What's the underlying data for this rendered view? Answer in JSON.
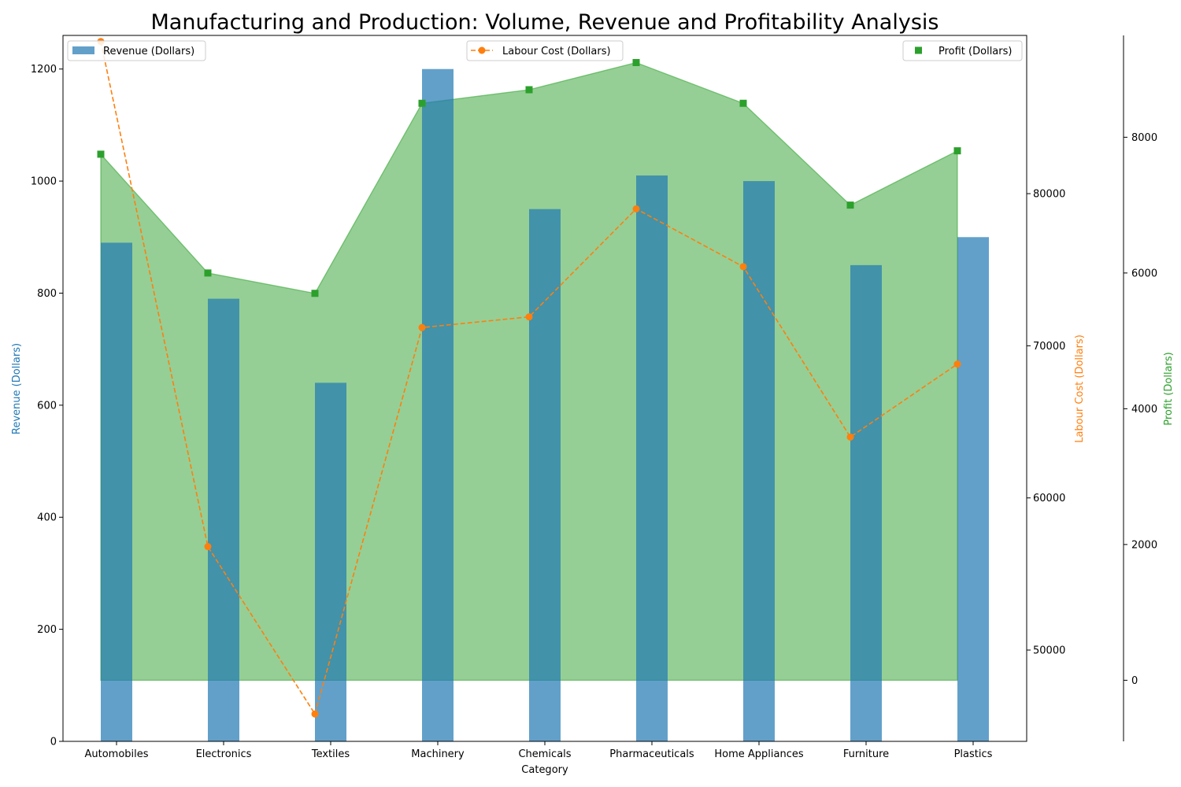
{
  "chart_data": {
    "type": "bar",
    "title": "Manufacturing and Production: Volume, Revenue and Profitability Analysis",
    "xlabel": "Category",
    "categories": [
      "Automobiles",
      "Electronics",
      "Textiles",
      "Machinery",
      "Chemicals",
      "Pharmaceuticals",
      "Home Appliances",
      "Furniture",
      "Plastics"
    ],
    "axes": {
      "revenue": {
        "label": "Revenue (Dollars)",
        "ylim": [
          0,
          1260
        ],
        "ticks": [
          0,
          200,
          400,
          600,
          800,
          1000,
          1200
        ],
        "color": "#1f77b4"
      },
      "labour": {
        "label": "Labour Cost (Dollars)",
        "ylim": [
          44000,
          90400
        ],
        "ticks": [
          50000,
          60000,
          70000,
          80000
        ],
        "color": "#ff7f0e"
      },
      "profit": {
        "label": "Profit (Dollars)",
        "ylim": [
          -900,
          9500
        ],
        "ticks": [
          0,
          2000,
          4000,
          6000,
          8000
        ],
        "color": "#2ca02c"
      }
    },
    "series": [
      {
        "name": "Revenue (Dollars)",
        "kind": "bar",
        "axis": "revenue",
        "color": "#1f77b4",
        "values": [
          890,
          790,
          640,
          1200,
          950,
          1010,
          1000,
          850,
          900
        ]
      },
      {
        "name": "Labour Cost (Dollars)",
        "kind": "line",
        "axis": "labour",
        "color": "#ff7f0e",
        "values": [
          90000,
          56800,
          45800,
          71200,
          71900,
          79000,
          75200,
          64000,
          68800
        ]
      },
      {
        "name": "Profit (Dollars)",
        "kind": "area-scatter",
        "axis": "profit",
        "color": "#2ca02c",
        "values": [
          7750,
          6000,
          5700,
          8500,
          8700,
          9100,
          8500,
          7000,
          7800
        ]
      }
    ],
    "legend": {
      "revenue": "top-left",
      "labour": "top-center",
      "profit": "top-right"
    },
    "grid": false
  }
}
